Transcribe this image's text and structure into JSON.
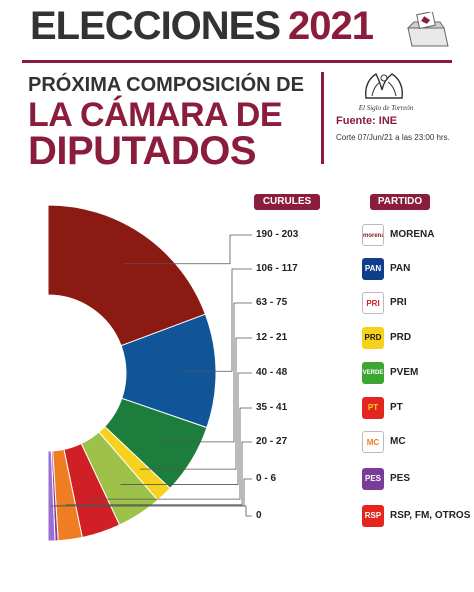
{
  "header": {
    "title_word": "ELECCIONES",
    "title_year": "2021"
  },
  "subtitle": {
    "line1": "PRÓXIMA COMPOSICIÓN DE",
    "line2": "LA CÁMARA DE",
    "line3": "DIPUTADOS"
  },
  "brand": {
    "logo_text": "El Siglo de Torreón",
    "source": "Fuente: INE",
    "cutoff": "Corte 07/Jun/21 a las 23:00 hrs."
  },
  "colors": {
    "accent": "#8b1d3c",
    "text": "#333333"
  },
  "chart_data": {
    "type": "pie",
    "column_headers": {
      "seats": "CURULES",
      "party": "PARTIDO"
    },
    "categories": [
      "MORENA",
      "PAN",
      "PRI",
      "PRD",
      "PVEM",
      "PT",
      "MC",
      "PES",
      "RSP, FM, OTROS"
    ],
    "seat_ranges": [
      "190 - 203",
      "106 - 117",
      "63 - 75",
      "12 - 21",
      "40 - 48",
      "35 - 41",
      "20 - 27",
      "0 - 6",
      "0"
    ],
    "values": [
      196.5,
      111.5,
      69,
      16.5,
      44,
      38,
      23.5,
      3,
      0
    ],
    "colors": [
      "#8b1a13",
      "#0f5597",
      "#1d7d3c",
      "#f7d21c",
      "#9ec14a",
      "#d11f26",
      "#ef7d22",
      "#8d3a97",
      "#9a6fd0"
    ],
    "logos": [
      {
        "icon": "morena-logo",
        "text": "morena",
        "bg": "#ffffff",
        "fg": "#8b1a13"
      },
      {
        "icon": "pan-logo",
        "text": "PAN",
        "bg": "#0f3f8a",
        "fg": "#ffffff"
      },
      {
        "icon": "pri-logo",
        "text": "PRI",
        "bg": "#ffffff",
        "fg": "#d11f26"
      },
      {
        "icon": "prd-logo",
        "text": "PRD",
        "bg": "#f7d21c",
        "fg": "#1a1a1a"
      },
      {
        "icon": "pvem-logo",
        "text": "VERDE",
        "bg": "#3ca534",
        "fg": "#ffffff"
      },
      {
        "icon": "pt-logo",
        "text": "PT",
        "bg": "#e3261f",
        "fg": "#f7d21c"
      },
      {
        "icon": "mc-logo",
        "text": "MC",
        "bg": "#ffffff",
        "fg": "#ef7d22"
      },
      {
        "icon": "pes-logo",
        "text": "PES",
        "bg": "#7a3d97",
        "fg": "#ffffff"
      },
      {
        "icon": "rsp-fm-logo",
        "text": "RSP",
        "bg": "#e3261f",
        "fg": "#ffffff"
      }
    ]
  }
}
